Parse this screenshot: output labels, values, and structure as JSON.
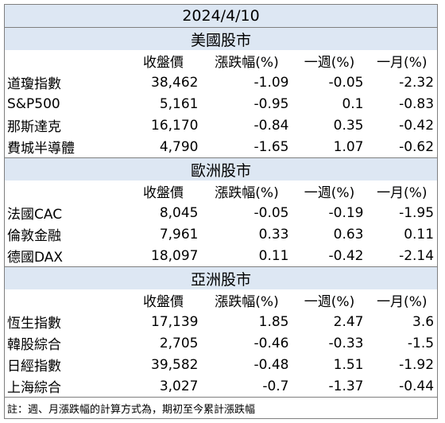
{
  "date": "2024/4/10",
  "headers": [
    "收盤價",
    "漲跌幅(%)",
    "一週(%)",
    "一月(%)"
  ],
  "sections": [
    {
      "title": "美國股市",
      "rows": [
        {
          "name": "道瓊指數",
          "close": "38,462",
          "change": "-1.09",
          "week": "-0.05",
          "month": "-2.32"
        },
        {
          "name": "S&P500",
          "close": "5,161",
          "change": "-0.95",
          "week": "0.1",
          "month": "-0.83"
        },
        {
          "name": "那斯達克",
          "close": "16,170",
          "change": "-0.84",
          "week": "0.35",
          "month": "-0.42"
        },
        {
          "name": "費城半導體",
          "close": "4,790",
          "change": "-1.65",
          "week": "1.07",
          "month": "-0.62"
        }
      ]
    },
    {
      "title": "歐洲股市",
      "rows": [
        {
          "name": "法國CAC",
          "close": "8,045",
          "change": "-0.05",
          "week": "-0.19",
          "month": "-1.95"
        },
        {
          "name": "倫敦金融",
          "close": "7,961",
          "change": "0.33",
          "week": "0.63",
          "month": "0.11"
        },
        {
          "name": "德國DAX",
          "close": "18,097",
          "change": "0.11",
          "week": "-0.42",
          "month": "-2.14"
        }
      ]
    },
    {
      "title": "亞洲股市",
      "rows": [
        {
          "name": "恆生指數",
          "close": "17,139",
          "change": "1.85",
          "week": "2.47",
          "month": "3.6"
        },
        {
          "name": "韓股綜合",
          "close": "2,705",
          "change": "-0.46",
          "week": "-0.33",
          "month": "-1.5"
        },
        {
          "name": "日經指數",
          "close": "39,582",
          "change": "-0.48",
          "week": "1.51",
          "month": "-1.92"
        },
        {
          "name": "上海綜合",
          "close": "3,027",
          "change": "-0.7",
          "week": "-1.37",
          "month": "-0.44"
        }
      ]
    }
  ],
  "note": "註：週、月漲跌幅的計算方式為，期初至今累計漲跌幅"
}
